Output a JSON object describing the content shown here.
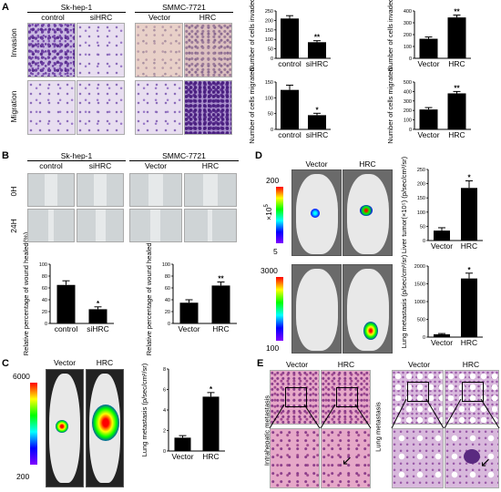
{
  "panel_letters": {
    "a": "A",
    "b": "B",
    "c": "C",
    "d": "D",
    "e": "E"
  },
  "panel_a": {
    "group1": "Sk-hep-1",
    "group2": "SMMC-7721",
    "cols": [
      "control",
      "siHRC",
      "Vector",
      "HRC"
    ],
    "rows": [
      "Invasion",
      "Migration"
    ]
  },
  "panel_b": {
    "group1": "Sk-hep-1",
    "group2": "SMMC-7721",
    "cols": [
      "control",
      "siHRC",
      "Vector",
      "HRC"
    ],
    "rows": [
      "0H",
      "24H"
    ]
  },
  "panel_c": {
    "mice": [
      "Vector",
      "HRC"
    ],
    "scale_max": "6000",
    "scale_min": "200"
  },
  "panel_d": {
    "mice": [
      "Vector",
      "HRC"
    ],
    "scale1_max": "200",
    "scale1_min": "5",
    "scale1_unit": "×10",
    "scale2_max": "3000",
    "scale2_min": "100"
  },
  "panel_e": {
    "cols_left": [
      "Vector",
      "HRC"
    ],
    "cols_right": [
      "Vector",
      "HRC"
    ],
    "row_left": "Intrahepatic metastasis",
    "row_right": "Lung metastasis"
  },
  "chart_data": [
    {
      "id": "a1",
      "type": "bar",
      "categories": [
        "control",
        "siHRC"
      ],
      "values": [
        210,
        85
      ],
      "errors": [
        15,
        8
      ],
      "sig": [
        "",
        "**"
      ],
      "ylabel": "Number of cells invaded",
      "ylim": [
        0,
        250
      ],
      "yticks": [
        0,
        50,
        100,
        150,
        200,
        250
      ]
    },
    {
      "id": "a2",
      "type": "bar",
      "categories": [
        "Vector",
        "HRC"
      ],
      "values": [
        165,
        345
      ],
      "errors": [
        15,
        20
      ],
      "sig": [
        "",
        "**"
      ],
      "ylabel": "Number of cells invaded",
      "ylim": [
        0,
        400
      ],
      "yticks": [
        0,
        100,
        200,
        300,
        400
      ]
    },
    {
      "id": "a3",
      "type": "bar",
      "categories": [
        "control",
        "siHRC"
      ],
      "values": [
        125,
        45
      ],
      "errors": [
        15,
        6
      ],
      "sig": [
        "",
        "*"
      ],
      "ylabel": "Number of cells migrated",
      "ylim": [
        0,
        150
      ],
      "yticks": [
        0,
        50,
        100,
        150
      ]
    },
    {
      "id": "a4",
      "type": "bar",
      "categories": [
        "Vector",
        "HRC"
      ],
      "values": [
        210,
        380
      ],
      "errors": [
        20,
        20
      ],
      "sig": [
        "",
        "**"
      ],
      "ylabel": "Number of cells migrated",
      "ylim": [
        0,
        500
      ],
      "yticks": [
        0,
        100,
        200,
        300,
        400,
        500
      ]
    },
    {
      "id": "b1",
      "type": "bar",
      "categories": [
        "control",
        "siHRC"
      ],
      "values": [
        65,
        24
      ],
      "errors": [
        7,
        4
      ],
      "sig": [
        "",
        "*"
      ],
      "ylabel": "Relative percentage of wound healed(%)",
      "ylim": [
        0,
        100
      ],
      "yticks": [
        0,
        20,
        40,
        60,
        80,
        100
      ]
    },
    {
      "id": "b2",
      "type": "bar",
      "categories": [
        "Vector",
        "HRC"
      ],
      "values": [
        35,
        64
      ],
      "errors": [
        5,
        6
      ],
      "sig": [
        "",
        "**"
      ],
      "ylabel": "Relative percentage of wound healed(%)",
      "ylim": [
        0,
        100
      ],
      "yticks": [
        0,
        20,
        40,
        60,
        80,
        100
      ]
    },
    {
      "id": "c1",
      "type": "bar",
      "categories": [
        "Vector",
        "HRC"
      ],
      "values": [
        1.3,
        5.3
      ],
      "errors": [
        0.2,
        0.4
      ],
      "sig": [
        "",
        "*"
      ],
      "ylabel": "Lung metastasis (p/sec/cm²/sr)",
      "ylim": [
        0,
        8
      ],
      "yticks": [
        0,
        2,
        4,
        6,
        8
      ]
    },
    {
      "id": "d1",
      "type": "bar",
      "categories": [
        "Vector",
        "HRC"
      ],
      "values": [
        35,
        185
      ],
      "errors": [
        10,
        25
      ],
      "sig": [
        "",
        "*"
      ],
      "ylabel": "Liver tumor(×10⁵) (p/sec/cm²/sr)",
      "ylim": [
        0,
        250
      ],
      "yticks": [
        0,
        50,
        100,
        150,
        200,
        250
      ]
    },
    {
      "id": "d2",
      "type": "bar",
      "categories": [
        "Vector",
        "HRC"
      ],
      "values": [
        80,
        1650
      ],
      "errors": [
        20,
        150
      ],
      "sig": [
        "",
        "*"
      ],
      "ylabel": "Lung metastasis (p/sec/cm²/sr)",
      "ylim": [
        0,
        2000
      ],
      "yticks": [
        0,
        500,
        1000,
        1500,
        2000
      ]
    }
  ]
}
